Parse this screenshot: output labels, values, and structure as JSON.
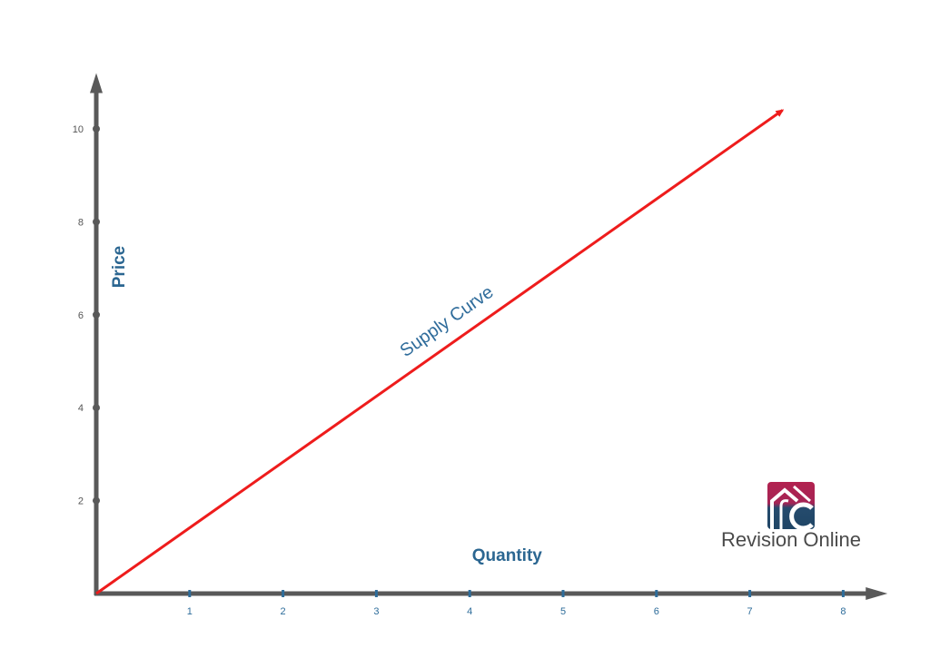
{
  "chart_data": {
    "type": "line",
    "xlabel": "Quantity",
    "ylabel": "Price",
    "xticks": [
      1,
      2,
      3,
      4,
      5,
      6,
      7,
      8
    ],
    "yticks": [
      2,
      4,
      6,
      8,
      10
    ],
    "xlim": [
      0,
      8.3
    ],
    "ylim": [
      0,
      11.2
    ],
    "grid": false,
    "series": [
      {
        "name": "Supply Curve",
        "color": "#ee1c1c",
        "points": [
          [
            0,
            0
          ],
          [
            7.35,
            10.4
          ]
        ],
        "arrow_end": true
      }
    ],
    "annotations": [
      {
        "text": "Supply Curve",
        "x": 3.75,
        "y": 5.6
      }
    ]
  },
  "colors": {
    "axis": "#595959",
    "x_tick": "#2d6c9a",
    "y_tick": "#555555",
    "axis_title": "#2b6691",
    "curve_label": "#2f6c9b",
    "logo_top": "#a52455",
    "logo_bottom": "#1f4565"
  },
  "logo": {
    "text": "Revision Online",
    "icon": "revision-online-logo-icon"
  }
}
